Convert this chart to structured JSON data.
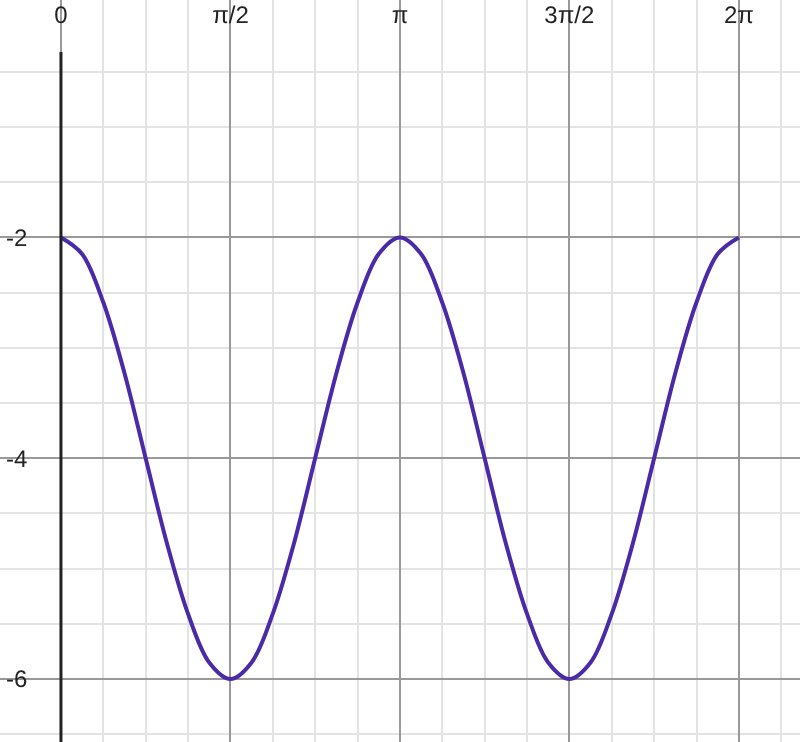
{
  "chart_data": {
    "type": "line",
    "x": [
      0,
      0.196,
      0.393,
      0.589,
      0.785,
      0.982,
      1.178,
      1.374,
      1.571,
      1.767,
      1.963,
      2.16,
      2.356,
      2.553,
      2.749,
      2.945,
      3.142,
      3.338,
      3.534,
      3.731,
      3.927,
      4.123,
      4.32,
      4.516,
      4.712,
      4.909,
      5.105,
      5.301,
      5.498,
      5.694,
      5.89,
      6.087,
      6.283
    ],
    "series": [
      {
        "color": "#4b2aa8",
        "values": [
          -2,
          -2.15,
          -2.59,
          -3.23,
          -4,
          -4.77,
          -5.41,
          -5.85,
          -6,
          -5.85,
          -5.41,
          -4.77,
          -4,
          -3.23,
          -2.59,
          -2.15,
          -2,
          -2.15,
          -2.59,
          -3.23,
          -4,
          -4.77,
          -5.41,
          -5.85,
          -6,
          -5.85,
          -5.41,
          -4.77,
          -4,
          -3.23,
          -2.59,
          -2.15,
          -2
        ]
      }
    ],
    "xlim": [
      -0.565,
      6.85
    ],
    "ylim": [
      -6.57,
      0.15
    ],
    "xticks": [
      {
        "value": 0,
        "label": "0"
      },
      {
        "value": 1.571,
        "label": "π/2"
      },
      {
        "value": 3.142,
        "label": "π"
      },
      {
        "value": 4.712,
        "label": "3π/2"
      },
      {
        "value": 6.283,
        "label": "2π"
      }
    ],
    "yticks": [
      -2,
      -4,
      -6
    ],
    "grid": true,
    "legend": false,
    "marker": "none",
    "line_style": "solid"
  }
}
